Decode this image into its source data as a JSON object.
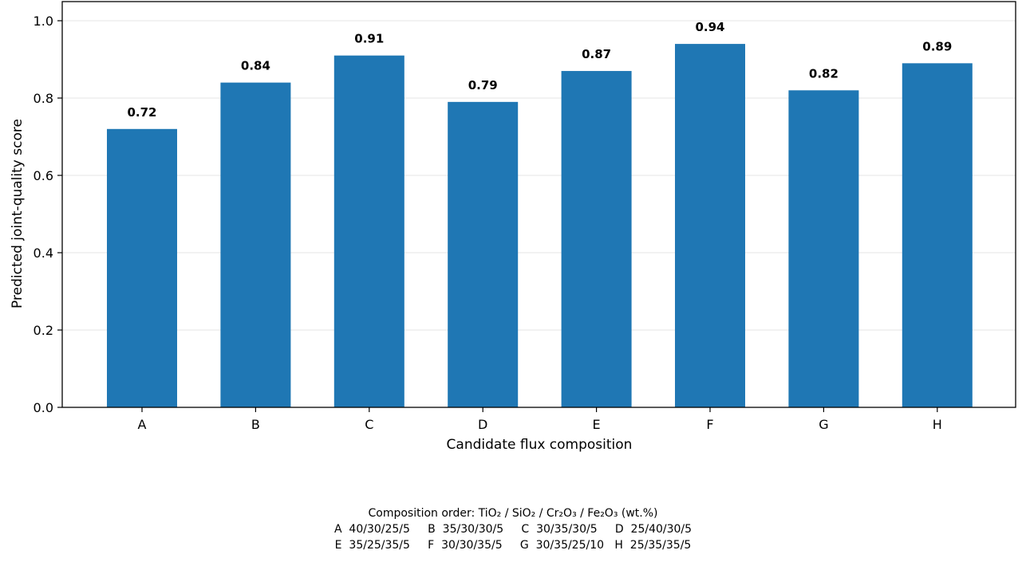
{
  "chart_data": {
    "type": "bar",
    "categories": [
      "A",
      "B",
      "C",
      "D",
      "E",
      "F",
      "G",
      "H"
    ],
    "values": [
      0.72,
      0.84,
      0.91,
      0.79,
      0.87,
      0.94,
      0.82,
      0.89
    ],
    "data_labels": [
      "0.72",
      "0.84",
      "0.91",
      "0.79",
      "0.87",
      "0.94",
      "0.82",
      "0.89"
    ],
    "xlabel": "Candidate flux composition",
    "ylabel": "Predicted joint-quality score",
    "ylim": [
      0,
      1.0
    ],
    "yticks": [
      "0.0",
      "0.2",
      "0.4",
      "0.6",
      "0.8",
      "1.0"
    ],
    "grid": "horizontal",
    "bar_color": "#1f77b4",
    "grid_color": "#e5e5e5"
  },
  "footnote": {
    "title": "Composition order: TiO₂ / SiO₂ / Cr₂O₃ / Fe₂O₃ (wt.%)",
    "line1": "A  40/30/25/5     B  35/30/30/5     C  30/35/30/5     D  25/40/30/5",
    "line2": "E  35/25/35/5     F  30/30/35/5     G  30/35/25/10   H  25/35/35/5"
  }
}
